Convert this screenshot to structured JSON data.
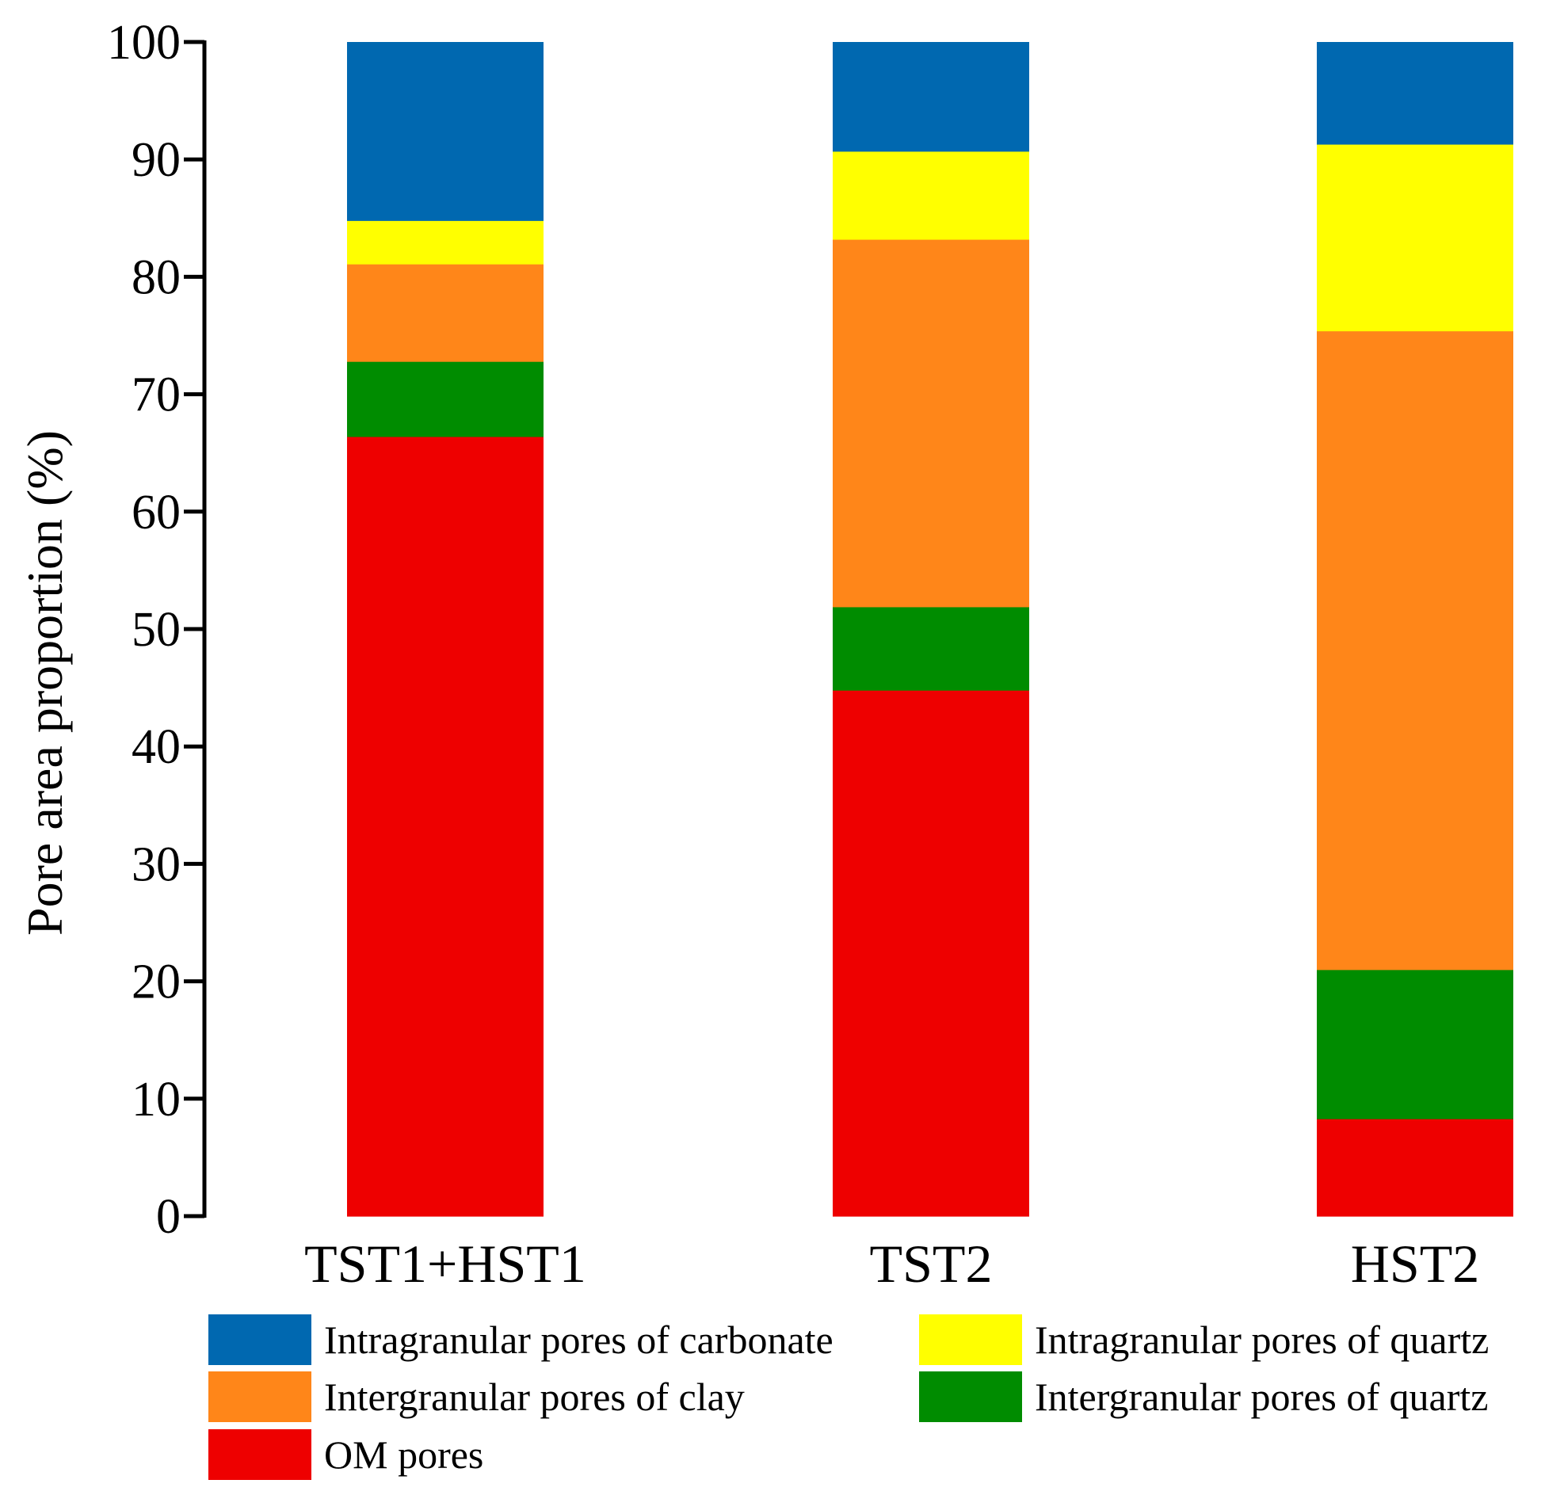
{
  "chart_data": {
    "type": "bar",
    "stacked": true,
    "title": "",
    "xlabel": "",
    "ylabel": "Pore area proportion (%)",
    "ylim": [
      0,
      100
    ],
    "yticks": [
      0,
      10,
      20,
      30,
      40,
      50,
      60,
      70,
      80,
      90,
      100
    ],
    "grid": false,
    "legend_position": "bottom",
    "categories": [
      "TST1+HST1",
      "TST2",
      "HST2"
    ],
    "series": [
      {
        "name": "OM pores",
        "color": "#ee0000",
        "values": [
          66.4,
          44.8,
          8.3
        ]
      },
      {
        "name": "Intergranular pores of quartz",
        "color": "#008c00",
        "values": [
          6.4,
          7.1,
          12.7
        ]
      },
      {
        "name": "Intergranular pores of clay",
        "color": "#ff8619",
        "values": [
          8.3,
          31.3,
          54.4
        ]
      },
      {
        "name": "Intragranular pores of quartz",
        "color": "#ffff00",
        "values": [
          3.7,
          7.5,
          15.9
        ]
      },
      {
        "name": "Intragranular pores of carbonate",
        "color": "#0068b0",
        "values": [
          15.2,
          9.3,
          8.7
        ]
      }
    ],
    "legend_order": [
      "Intragranular pores of carbonate",
      "Intragranular pores of quartz",
      "Intergranular pores of clay",
      "Intergranular pores of quartz",
      "OM pores"
    ]
  }
}
